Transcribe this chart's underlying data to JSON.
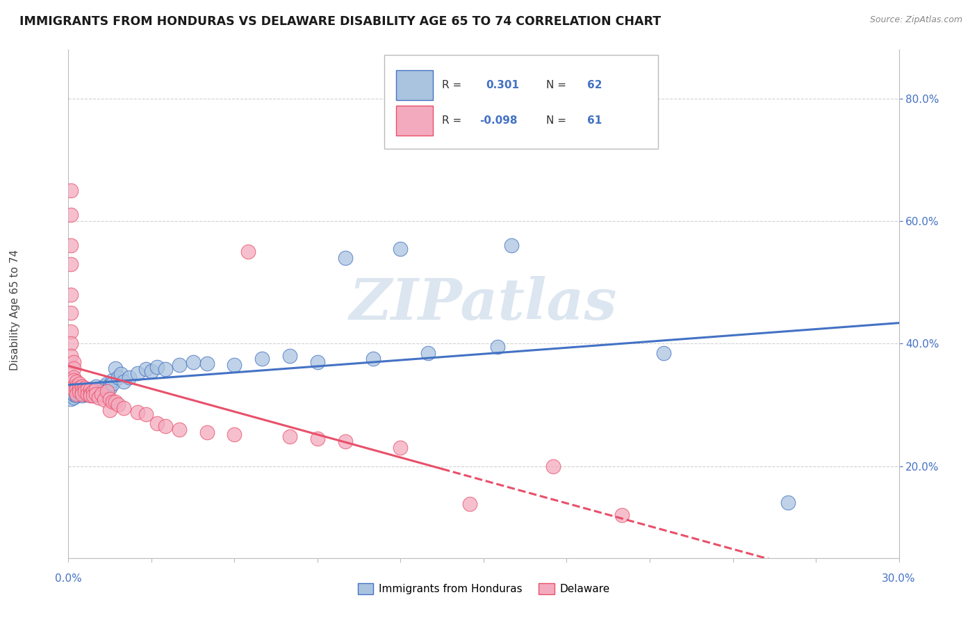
{
  "title": "IMMIGRANTS FROM HONDURAS VS DELAWARE DISABILITY AGE 65 TO 74 CORRELATION CHART",
  "source": "Source: ZipAtlas.com",
  "ylabel": "Disability Age 65 to 74",
  "legend_label1": "Immigrants from Honduras",
  "legend_label2": "Delaware",
  "r1": "0.301",
  "n1": "62",
  "r2": "-0.098",
  "n2": "61",
  "xlim": [
    0.0,
    0.3
  ],
  "ylim": [
    0.05,
    0.88
  ],
  "ytick_values": [
    0.2,
    0.4,
    0.6,
    0.8
  ],
  "color_blue": "#aac4e0",
  "color_pink": "#f4aabe",
  "line_blue": "#4472c4",
  "line_pink": "#e8506a",
  "watermark_color": "#dce6f0",
  "blue_points": [
    [
      0.001,
      0.325
    ],
    [
      0.001,
      0.315
    ],
    [
      0.001,
      0.32
    ],
    [
      0.001,
      0.318
    ],
    [
      0.001,
      0.31
    ],
    [
      0.002,
      0.322
    ],
    [
      0.002,
      0.316
    ],
    [
      0.002,
      0.312
    ],
    [
      0.002,
      0.32
    ],
    [
      0.002,
      0.318
    ],
    [
      0.003,
      0.315
    ],
    [
      0.003,
      0.325
    ],
    [
      0.004,
      0.32
    ],
    [
      0.004,
      0.318
    ],
    [
      0.005,
      0.322
    ],
    [
      0.005,
      0.315
    ],
    [
      0.006,
      0.318
    ],
    [
      0.006,
      0.32
    ],
    [
      0.007,
      0.322
    ],
    [
      0.007,
      0.316
    ],
    [
      0.008,
      0.318
    ],
    [
      0.008,
      0.325
    ],
    [
      0.009,
      0.32
    ],
    [
      0.009,
      0.315
    ],
    [
      0.01,
      0.33
    ],
    [
      0.01,
      0.322
    ],
    [
      0.011,
      0.325
    ],
    [
      0.011,
      0.318
    ],
    [
      0.012,
      0.328
    ],
    [
      0.012,
      0.322
    ],
    [
      0.013,
      0.33
    ],
    [
      0.013,
      0.325
    ],
    [
      0.014,
      0.335
    ],
    [
      0.015,
      0.332
    ],
    [
      0.015,
      0.328
    ],
    [
      0.016,
      0.34
    ],
    [
      0.016,
      0.335
    ],
    [
      0.017,
      0.36
    ],
    [
      0.018,
      0.345
    ],
    [
      0.019,
      0.35
    ],
    [
      0.02,
      0.338
    ],
    [
      0.022,
      0.345
    ],
    [
      0.025,
      0.352
    ],
    [
      0.028,
      0.358
    ],
    [
      0.03,
      0.355
    ],
    [
      0.032,
      0.362
    ],
    [
      0.035,
      0.358
    ],
    [
      0.04,
      0.365
    ],
    [
      0.045,
      0.37
    ],
    [
      0.05,
      0.368
    ],
    [
      0.06,
      0.365
    ],
    [
      0.07,
      0.375
    ],
    [
      0.08,
      0.38
    ],
    [
      0.09,
      0.37
    ],
    [
      0.1,
      0.54
    ],
    [
      0.11,
      0.375
    ],
    [
      0.12,
      0.555
    ],
    [
      0.13,
      0.385
    ],
    [
      0.155,
      0.395
    ],
    [
      0.16,
      0.56
    ],
    [
      0.215,
      0.385
    ],
    [
      0.26,
      0.14
    ]
  ],
  "pink_points": [
    [
      0.001,
      0.65
    ],
    [
      0.001,
      0.61
    ],
    [
      0.001,
      0.56
    ],
    [
      0.001,
      0.53
    ],
    [
      0.001,
      0.48
    ],
    [
      0.001,
      0.45
    ],
    [
      0.001,
      0.42
    ],
    [
      0.001,
      0.4
    ],
    [
      0.001,
      0.38
    ],
    [
      0.002,
      0.37
    ],
    [
      0.002,
      0.36
    ],
    [
      0.002,
      0.345
    ],
    [
      0.002,
      0.34
    ],
    [
      0.002,
      0.33
    ],
    [
      0.002,
      0.325
    ],
    [
      0.003,
      0.338
    ],
    [
      0.003,
      0.33
    ],
    [
      0.003,
      0.325
    ],
    [
      0.003,
      0.318
    ],
    [
      0.004,
      0.335
    ],
    [
      0.004,
      0.328
    ],
    [
      0.004,
      0.322
    ],
    [
      0.005,
      0.33
    ],
    [
      0.005,
      0.322
    ],
    [
      0.005,
      0.318
    ],
    [
      0.006,
      0.328
    ],
    [
      0.006,
      0.322
    ],
    [
      0.007,
      0.325
    ],
    [
      0.007,
      0.318
    ],
    [
      0.008,
      0.325
    ],
    [
      0.008,
      0.318
    ],
    [
      0.008,
      0.315
    ],
    [
      0.009,
      0.322
    ],
    [
      0.009,
      0.315
    ],
    [
      0.01,
      0.325
    ],
    [
      0.01,
      0.318
    ],
    [
      0.011,
      0.312
    ],
    [
      0.012,
      0.318
    ],
    [
      0.013,
      0.308
    ],
    [
      0.014,
      0.322
    ],
    [
      0.015,
      0.31
    ],
    [
      0.015,
      0.292
    ],
    [
      0.016,
      0.305
    ],
    [
      0.017,
      0.305
    ],
    [
      0.018,
      0.3
    ],
    [
      0.02,
      0.295
    ],
    [
      0.025,
      0.288
    ],
    [
      0.028,
      0.285
    ],
    [
      0.032,
      0.27
    ],
    [
      0.035,
      0.265
    ],
    [
      0.04,
      0.26
    ],
    [
      0.05,
      0.255
    ],
    [
      0.06,
      0.252
    ],
    [
      0.065,
      0.55
    ],
    [
      0.08,
      0.248
    ],
    [
      0.09,
      0.245
    ],
    [
      0.1,
      0.24
    ],
    [
      0.12,
      0.23
    ],
    [
      0.145,
      0.138
    ],
    [
      0.175,
      0.2
    ],
    [
      0.2,
      0.12
    ]
  ]
}
